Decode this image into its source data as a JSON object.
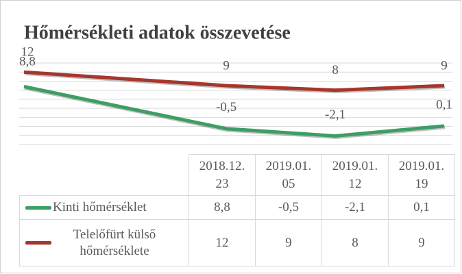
{
  "chart_data": {
    "type": "line",
    "title": "Hőmérsékleti adatok összevetése",
    "x": [
      "2018.12.23",
      "2019.01.05",
      "2019.01.12",
      "2019.01.19"
    ],
    "series": [
      {
        "name": "Kinti hőmérséklet",
        "color": "#3c9e62",
        "values": [
          8.8,
          -0.5,
          -2.1,
          0.1
        ],
        "value_labels": [
          "8,8",
          "-0,5",
          "-2,1",
          "0,1"
        ]
      },
      {
        "name": "Telelőfürt külső hőmérséklete",
        "color": "#a6362c",
        "values": [
          12,
          9,
          8,
          9
        ]
      }
    ],
    "ylim": [
      -4,
      14
    ],
    "yticks": [
      -4,
      -2,
      0,
      2,
      4,
      6,
      8,
      10,
      12,
      14
    ],
    "grid": true
  }
}
